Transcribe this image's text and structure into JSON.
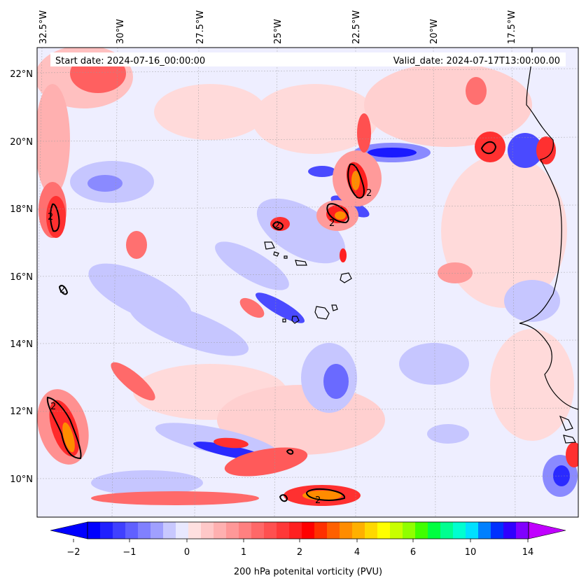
{
  "header": {
    "start_date": "Start date: 2024-07-16_00:00:00",
    "valid_date": "Valid_date: 2024-07-17T13:00:00.00"
  },
  "map": {
    "lon_labels": [
      "32.5°W",
      "30°W",
      "27.5°W",
      "25°W",
      "22.5°W",
      "20°W",
      "17.5°W"
    ],
    "lat_labels": [
      "22°N",
      "20°N",
      "18°N",
      "16°N",
      "14°N",
      "12°N",
      "10°N"
    ],
    "contour_label": "2",
    "colors": {
      "neutral": "#eeeeff",
      "pos_light": "#ffdada",
      "pos_mid": "#ff9a9a",
      "pos_strong": "#ff3030",
      "orange": "#ff8c00",
      "neg_light": "#c6c6ff",
      "neg_mid": "#8a8aff",
      "neg_strong": "#1a1aff",
      "coast": "#000000"
    }
  },
  "colorbar": {
    "title": "200 hPa potenital vorticity (PVU)",
    "tick_labels": [
      "−2",
      "−1",
      "0",
      "1",
      "2",
      "4",
      "6",
      "10",
      "14"
    ],
    "colors": [
      "#0000ff",
      "#2020ff",
      "#4040ff",
      "#6060ff",
      "#8080ff",
      "#a0a0ff",
      "#c8c8ff",
      "#e8e8ff",
      "#ffe0e0",
      "#ffc8c8",
      "#ffb0b0",
      "#ff9898",
      "#ff8080",
      "#ff6868",
      "#ff5050",
      "#ff3838",
      "#ff2020",
      "#ff0000",
      "#ff3000",
      "#ff6000",
      "#ff8c00",
      "#ffb000",
      "#ffd800",
      "#ffff00",
      "#c8ff00",
      "#90ff00",
      "#40ff00",
      "#00ff40",
      "#00ff90",
      "#00ffd0",
      "#00e0ff",
      "#0080ff",
      "#0030ff",
      "#3000ff",
      "#8000ff"
    ]
  }
}
